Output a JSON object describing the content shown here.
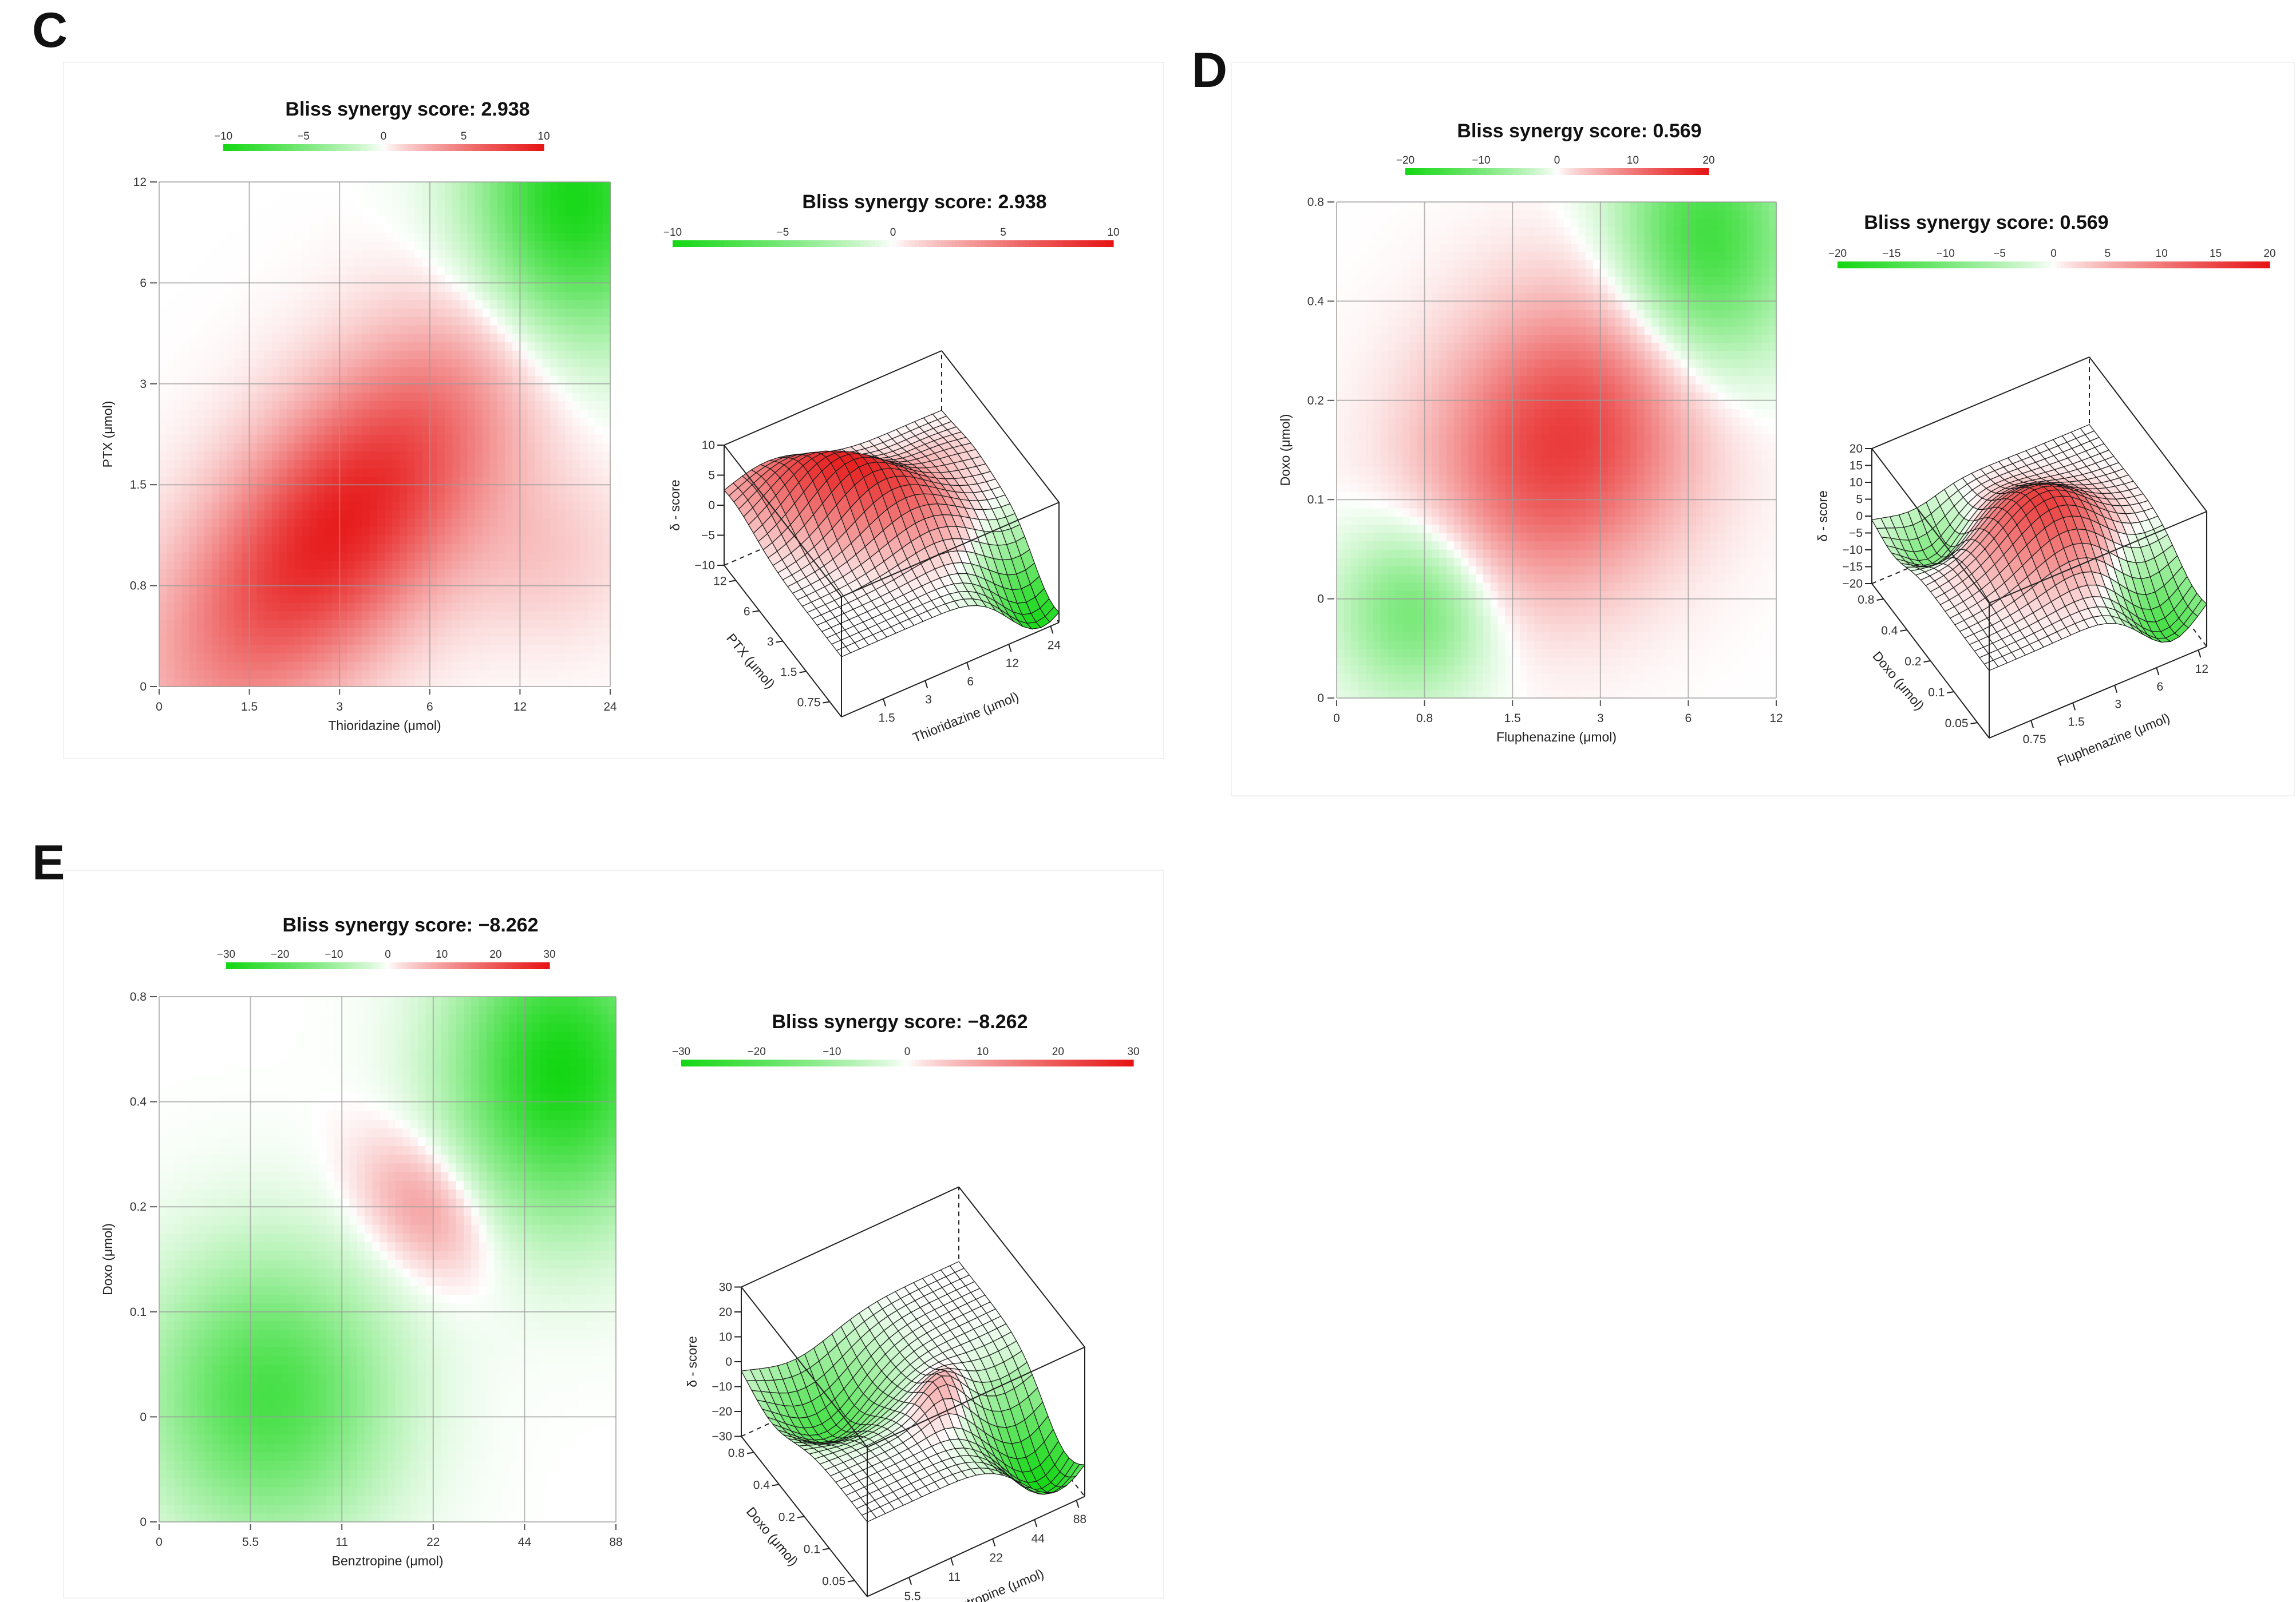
{
  "panels": [
    {
      "id": "C",
      "letter": "C",
      "chart_data": {
        "type": "heatmap",
        "title": "Bliss synergy score: 2.938",
        "xlabel": "Thioridazine (μmol)",
        "ylabel": "PTX (μmol)",
        "zlabel": "δ - score",
        "x_ticks": [
          "0",
          "1.5",
          "3",
          "6",
          "12",
          "24"
        ],
        "y_ticks": [
          "0",
          "0.8",
          "1.5",
          "3",
          "6",
          "12"
        ],
        "colorbar_ticks": [
          "-10",
          "-5",
          "0",
          "5",
          "10"
        ],
        "colorbar_range": [
          -10,
          10
        ],
        "z_ticks": [
          "10",
          "5",
          "0",
          "-5",
          "-10"
        ],
        "surface_x_ticks": [
          "1.5",
          "3",
          "6",
          "12",
          "24"
        ],
        "surface_y_ticks": [
          "0.75",
          "1.5",
          "3",
          "6",
          "12"
        ],
        "surface_y_label": "PTX (μmol)",
        "surface_x_label": "Thioridazine (μmol)",
        "peaks": [
          {
            "x": 2.0,
            "y": 1.6,
            "sx": 1.6,
            "sy": 0.75,
            "rot": 45,
            "value": 9.5
          },
          {
            "x": 4.6,
            "y": 4.8,
            "sx": 0.75,
            "sy": 0.95,
            "rot": 0,
            "value": -10
          },
          {
            "x": 4.3,
            "y": 1.3,
            "sx": 0.7,
            "sy": 0.6,
            "rot": 0,
            "value": 1.5
          }
        ]
      }
    },
    {
      "id": "D",
      "letter": "D",
      "chart_data": {
        "type": "heatmap",
        "title": "Bliss synergy score: 0.569",
        "xlabel": "Fluphenazine (μmol)",
        "ylabel": "Doxo (μmol)",
        "zlabel": "δ - score",
        "x_ticks": [
          "0",
          "0.8",
          "1.5",
          "3",
          "6",
          "12"
        ],
        "y_ticks": [
          "0",
          "0",
          "0.1",
          "0.2",
          "0.4",
          "0.8"
        ],
        "colorbar_ticks": [
          "-20",
          "-15",
          "-10",
          "-5",
          "0",
          "5",
          "10",
          "15",
          "20"
        ],
        "colorbar_ticks_small": [
          "-20",
          "-10",
          "0",
          "10",
          "20"
        ],
        "colorbar_range": [
          -20,
          20
        ],
        "z_ticks": [
          "20",
          "15",
          "10",
          "5",
          "0",
          "-5",
          "-10",
          "-15",
          "-20"
        ],
        "surface_x_ticks": [
          "0.75",
          "1.5",
          "3",
          "6",
          "12"
        ],
        "surface_y_ticks": [
          "0.05",
          "0.1",
          "0.2",
          "0.4",
          "0.8"
        ],
        "surface_y_label": "Doxo (μmol)",
        "surface_x_label": "Fluphenazine (μmol)",
        "peaks": [
          {
            "x": 2.6,
            "y": 2.6,
            "sx": 1.1,
            "sy": 0.9,
            "rot": 40,
            "value": 16
          },
          {
            "x": 4.2,
            "y": 4.6,
            "sx": 0.7,
            "sy": 0.9,
            "rot": 0,
            "value": -16
          },
          {
            "x": 0.9,
            "y": 0.9,
            "sx": 0.6,
            "sy": 0.6,
            "rot": 0,
            "value": -11
          }
        ]
      }
    },
    {
      "id": "E",
      "letter": "E",
      "chart_data": {
        "type": "heatmap",
        "title": "Bliss synergy score: −8.262",
        "xlabel": "Benztropine (μmol)",
        "ylabel": "Doxo (μmol)",
        "zlabel": "δ - score",
        "x_ticks": [
          "0",
          "5.5",
          "11",
          "22",
          "44",
          "88"
        ],
        "y_ticks": [
          "0",
          "0",
          "0.1",
          "0.2",
          "0.4",
          "0.8"
        ],
        "colorbar_ticks": [
          "-30",
          "-20",
          "-10",
          "0",
          "10",
          "20",
          "30"
        ],
        "colorbar_range": [
          -30,
          30
        ],
        "z_ticks": [
          "30",
          "20",
          "10",
          "0",
          "-10",
          "-20",
          "-30"
        ],
        "surface_x_ticks": [
          "5.5",
          "11",
          "22",
          "44",
          "88"
        ],
        "surface_y_ticks": [
          "0.05",
          "0.1",
          "0.2",
          "0.4",
          "0.8"
        ],
        "surface_y_label": "Doxo (μmol)",
        "surface_x_label": "Benztropine (μmol)",
        "peaks": [
          {
            "x": 4.4,
            "y": 4.3,
            "sx": 0.8,
            "sy": 0.95,
            "rot": 0,
            "value": -30
          },
          {
            "x": 1.2,
            "y": 1.2,
            "sx": 0.9,
            "sy": 0.9,
            "rot": 0,
            "value": -22
          },
          {
            "x": 2.9,
            "y": 3.0,
            "sx": 0.55,
            "sy": 0.38,
            "rot": -40,
            "value": 11
          }
        ]
      }
    }
  ]
}
